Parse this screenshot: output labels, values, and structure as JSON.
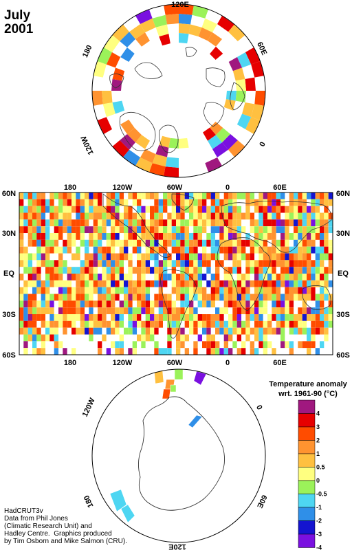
{
  "header": {
    "month": "July",
    "year": "2001"
  },
  "north_map": {
    "lon_labels": {
      "top": "120E",
      "left": "180",
      "right": "60E",
      "lower_left": "120W",
      "lower_right": "0"
    }
  },
  "equirect_map": {
    "top_lon_labels": [
      "180",
      "120W",
      "60W",
      "0",
      "60E"
    ],
    "bottom_lon_labels": [
      "180",
      "120W",
      "60W",
      "0",
      "60E"
    ],
    "lat_labels": [
      "60N",
      "30N",
      "EQ",
      "30S",
      "60S"
    ]
  },
  "south_map": {
    "lon_labels": {
      "upper_left": "120W",
      "top": "60W",
      "right": "0",
      "lower_left": "180",
      "lower_right": "60E",
      "bottom": "120E"
    }
  },
  "legend": {
    "title_line1": "Temperature anomaly",
    "title_line2": "wrt. 1961-90  (°C)",
    "levels": [
      "4",
      "3",
      "2",
      "1",
      "0.5",
      "0",
      "-0.5",
      "-1",
      "-2",
      "-3",
      "-4"
    ],
    "colors": [
      "#a0187f",
      "#e60000",
      "#ff4c00",
      "#ff9330",
      "#ffc040",
      "#ffff80",
      "#9bf25a",
      "#4ed6f2",
      "#2f8fe8",
      "#1414d0",
      "#7a10e0"
    ]
  },
  "credit": {
    "line1": "HadCRUT3v",
    "line2": "Data from Phil Jones",
    "line3": "(Climatic Research Unit) and",
    "line4": "Hadley Centre.  Graphics produced",
    "line5": "by Tim Osborn and Mike Salmon (CRU)."
  }
}
